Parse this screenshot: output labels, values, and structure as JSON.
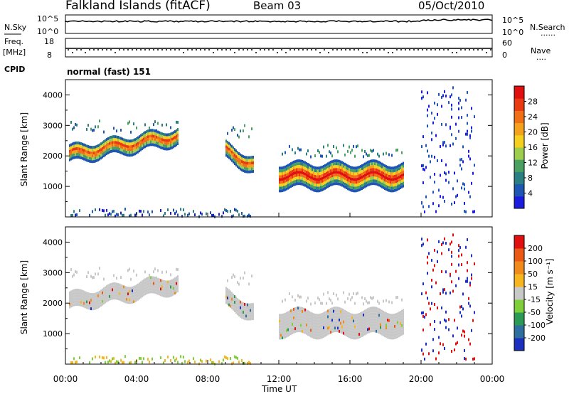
{
  "header": {
    "station": "Falkland Islands (fitACF)",
    "beam": "Beam 03",
    "date": "05/Oct/2010"
  },
  "noise_panel": {
    "left_label": "N.Sky",
    "left_ticks": [
      "10^5",
      "10^0"
    ],
    "right_ticks": [
      "10^5",
      "10^0"
    ],
    "right_label": "N.Search",
    "right_legend_line": "......"
  },
  "freq_panel": {
    "left_label_top": "Freq.",
    "left_label_unit": "[MHz]",
    "left_ticks": [
      "18",
      "8"
    ],
    "right_ticks": [
      "60",
      "0"
    ],
    "right_label": "Nave",
    "right_legend_line": "....",
    "cpid_label": "CPID",
    "mode_text": "normal (fast) 151"
  },
  "chart_data": [
    {
      "type": "heatmap",
      "name": "power",
      "xlabel": "Time UT",
      "ylabel": "Slant Range [km]",
      "x_range_hours": [
        0,
        24
      ],
      "ylim": [
        0,
        4500
      ],
      "yticks": [
        1000,
        2000,
        3000,
        4000
      ],
      "colorbar": {
        "label": "Power [dB]",
        "ticks": [
          4,
          8,
          12,
          16,
          20,
          24,
          28
        ],
        "range": [
          0,
          32
        ],
        "colors": [
          "#1c1cdc",
          "#1f56b4",
          "#2a7f82",
          "#4aa060",
          "#9ccd4f",
          "#f5d020",
          "#f4a11d",
          "#ef7017",
          "#ea3a12",
          "#e01010"
        ]
      },
      "echo_regions": [
        {
          "t0": 0.2,
          "t1": 6.3,
          "r_top": 2800,
          "r_mid_start": 2100,
          "r_mid_end": 2700,
          "level": "high"
        },
        {
          "t0": 9.0,
          "t1": 10.6,
          "r_top": 2650,
          "r_mid_start": 2200,
          "r_mid_end": 1750,
          "level": "high"
        },
        {
          "t0": 12.0,
          "t1": 19.0,
          "r_top": 2000,
          "r_mid_start": 1400,
          "r_mid_end": 1400,
          "level": "very-high"
        },
        {
          "t0": 20.0,
          "t1": 23.0,
          "r_top": 4400,
          "r_mid_start": 2000,
          "r_mid_end": 2000,
          "level": "noise"
        }
      ]
    },
    {
      "type": "heatmap",
      "name": "velocity",
      "xlabel": "Time UT",
      "ylabel": "Slant Range [km]",
      "x_range_hours": [
        0,
        24
      ],
      "ylim": [
        0,
        4500
      ],
      "yticks": [
        1000,
        2000,
        3000,
        4000
      ],
      "xticks": [
        "00:00",
        "04:00",
        "08:00",
        "12:00",
        "16:00",
        "20:00",
        "00:00"
      ],
      "colorbar": {
        "label": "Velocity [m s⁻¹]",
        "ticks": [
          200,
          100,
          50,
          15,
          -15,
          -50,
          -100,
          -200
        ],
        "colors": [
          "#1c2fbf",
          "#2e6fa0",
          "#2b9a55",
          "#7fcf3a",
          "#c8c8c8",
          "#f7b520",
          "#f08a1d",
          "#ea5a15",
          "#e01010"
        ]
      }
    }
  ]
}
